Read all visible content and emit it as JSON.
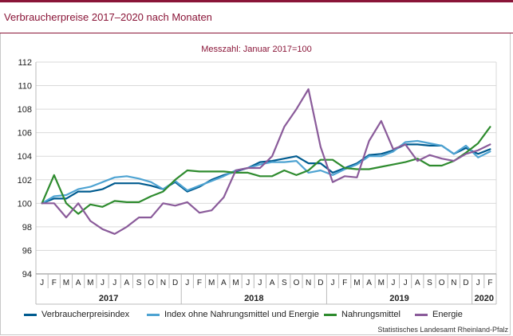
{
  "header": {
    "title": "Verbraucherpreise 2017–2020 nach Monaten"
  },
  "source": "Statistisches Landesamt Rheinland-Pfalz",
  "chart_data": {
    "type": "line",
    "title": "Verbraucherpreise 2017–2020 nach Monaten",
    "subtitle": "Messzahl: Januar 2017=100",
    "ylim": [
      94,
      112
    ],
    "yticks": [
      94,
      96,
      98,
      100,
      102,
      104,
      106,
      108,
      110,
      112
    ],
    "grid": true,
    "legend_position": "bottom",
    "month_labels": [
      "J",
      "F",
      "M",
      "A",
      "M",
      "J",
      "J",
      "A",
      "S",
      "O",
      "N",
      "D",
      "J",
      "F",
      "M",
      "A",
      "M",
      "J",
      "J",
      "A",
      "S",
      "O",
      "N",
      "D",
      "J",
      "F",
      "M",
      "A",
      "M",
      "J",
      "J",
      "A",
      "S",
      "O",
      "N",
      "D",
      "J",
      "F"
    ],
    "year_labels": [
      "2017",
      "2018",
      "2019",
      "2020"
    ],
    "series": [
      {
        "name": "Verbraucherpreisindex",
        "color": "#005b8f",
        "values": [
          100.0,
          100.4,
          100.4,
          101.0,
          101.0,
          101.2,
          101.7,
          101.7,
          101.7,
          101.5,
          101.2,
          101.8,
          101.0,
          101.4,
          102.0,
          102.4,
          102.7,
          103.0,
          103.5,
          103.6,
          103.8,
          104.0,
          103.4,
          103.4,
          102.6,
          103.0,
          103.4,
          104.1,
          104.2,
          104.5,
          105.0,
          105.0,
          104.9,
          104.9,
          104.2,
          104.7,
          104.2,
          104.6
        ]
      },
      {
        "name": "Index ohne Nahrungsmittel und Energie",
        "color": "#4ea3d2",
        "values": [
          100.0,
          100.6,
          100.7,
          101.2,
          101.4,
          101.8,
          102.2,
          102.3,
          102.1,
          101.8,
          101.2,
          101.9,
          101.1,
          101.5,
          101.9,
          102.3,
          102.8,
          103.0,
          103.3,
          103.5,
          103.5,
          103.6,
          102.6,
          102.8,
          102.4,
          102.9,
          103.3,
          104.0,
          104.0,
          104.4,
          105.2,
          105.3,
          105.1,
          104.9,
          104.2,
          104.9,
          103.9,
          104.4
        ]
      },
      {
        "name": "Nahrungsmittel",
        "color": "#2e8b2e",
        "values": [
          100.0,
          102.4,
          100.0,
          99.1,
          99.9,
          99.7,
          100.2,
          100.1,
          100.1,
          100.6,
          101.0,
          102.0,
          102.8,
          102.7,
          102.7,
          102.7,
          102.6,
          102.6,
          102.3,
          102.3,
          102.8,
          102.4,
          102.8,
          103.7,
          103.7,
          103.0,
          102.9,
          102.9,
          103.1,
          103.3,
          103.5,
          103.8,
          103.2,
          103.2,
          103.6,
          104.3,
          105.1,
          106.5
        ]
      },
      {
        "name": "Energie",
        "color": "#8a5b9a",
        "values": [
          100.0,
          100.0,
          98.8,
          100.0,
          98.5,
          97.8,
          97.4,
          98.0,
          98.8,
          98.8,
          100.0,
          99.8,
          100.1,
          99.2,
          99.4,
          100.5,
          102.8,
          103.0,
          103.0,
          104.0,
          106.5,
          108.0,
          109.7,
          104.8,
          101.8,
          102.3,
          102.2,
          105.3,
          107.0,
          104.6,
          105.0,
          103.6,
          104.1,
          103.8,
          103.6,
          104.2,
          104.5,
          105.0
        ]
      }
    ]
  }
}
